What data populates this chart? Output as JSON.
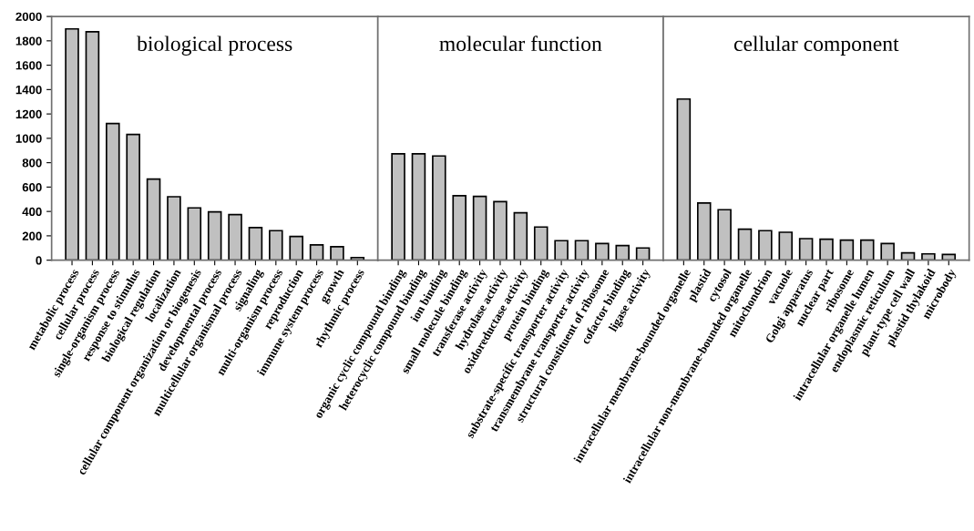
{
  "chart_data": [
    {
      "type": "bar",
      "title": "biological process",
      "categories": [
        "metabolic process",
        "cellular process",
        "single-organism process",
        "response to stimulus",
        "biological regulation",
        "localization",
        "cellular component organization or biogenesis",
        "developmental process",
        "multicellular organismal process",
        "signaling",
        "multi-organism process",
        "reproduction",
        "immune system process",
        "growth",
        "rhythmic process"
      ],
      "values": [
        1898,
        1875,
        1122,
        1032,
        666,
        521,
        429,
        397,
        374,
        267,
        242,
        195,
        125,
        110,
        22
      ],
      "color": "#c0c0c0",
      "ylim": [
        0,
        2000
      ],
      "yticks": [
        0,
        200,
        400,
        600,
        800,
        1000,
        1200,
        1400,
        1600,
        1800,
        2000
      ],
      "grid": false
    },
    {
      "type": "bar",
      "title": "molecular function",
      "categories": [
        "organic cyclic compound binding",
        "heterocyclic compound binding",
        "ion binding",
        "small molecule binding",
        "transferase activity",
        "hydrolase activity",
        "oxidoreductase activity",
        "protein binding",
        "substrate-specific transporter activity",
        "transmembrane transporter activity",
        "structural constituent of ribosome",
        "cofactor binding",
        "ligase activity"
      ],
      "values": [
        873,
        873,
        855,
        529,
        524,
        481,
        389,
        272,
        160,
        160,
        137,
        120,
        100
      ],
      "color": "#c0c0c0",
      "ylim": [
        0,
        2000
      ],
      "tick_labels": "x",
      "grid": false
    },
    {
      "type": "bar",
      "title": "cellular component",
      "categories": [
        "intracellular membrane-bounded organelle",
        "plastid",
        "cytosol",
        "intracellular non-membrane-bounded organelle",
        "mitochondrion",
        "vacuole",
        "Golgi apparatus",
        "nuclear part",
        "ribosome",
        "intracellular organelle lumen",
        "endoplasmic reticulum",
        "plant-type cell wall",
        "plastid thylakoid",
        "microbody"
      ],
      "values": [
        1322,
        469,
        414,
        254,
        242,
        229,
        177,
        172,
        165,
        165,
        137,
        60,
        52,
        47
      ],
      "color": "#c0c0c0",
      "ylim": [
        0,
        2000
      ],
      "tick_labels": "x",
      "grid": false
    }
  ]
}
